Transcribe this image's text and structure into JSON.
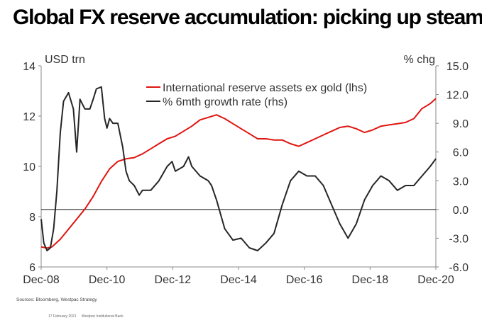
{
  "title": "Global FX reserve accumulation: picking up steam",
  "source": "Sources: Bloomberg, Westpac Strategy",
  "footer": {
    "date": "17 February 2021",
    "org": "Westpac Institutional Bank"
  },
  "chart_data": {
    "type": "line",
    "left_axis": {
      "label": "USD trn",
      "ylim": [
        6,
        14
      ],
      "ticks": [
        6,
        8,
        10,
        12,
        14
      ]
    },
    "right_axis": {
      "label": "% chg",
      "ylim": [
        -6,
        15
      ],
      "ticks": [
        "-6.0",
        "-3.0",
        "0.0",
        "3.0",
        "6.0",
        "9.0",
        "12.0",
        "15.0"
      ]
    },
    "x_range": [
      2008.92,
      2020.92
    ],
    "x_ticks": [
      "Dec-08",
      "Dec-10",
      "Dec-12",
      "Dec-14",
      "Dec-16",
      "Dec-18",
      "Dec-20"
    ],
    "x_tick_positions": [
      2008.92,
      2010.92,
      2012.92,
      2014.92,
      2016.92,
      2018.92,
      2020.92
    ],
    "zero_line_rhs": 0,
    "series": [
      {
        "name": "International reserve assets ex gold (lhs)",
        "color": "#e0140f",
        "axis": "left",
        "x": [
          2008.92,
          2009.1,
          2009.25,
          2009.5,
          2009.75,
          2010.0,
          2010.25,
          2010.5,
          2010.75,
          2011.0,
          2011.25,
          2011.5,
          2011.75,
          2012.0,
          2012.25,
          2012.5,
          2012.75,
          2013.0,
          2013.25,
          2013.5,
          2013.75,
          2014.0,
          2014.25,
          2014.5,
          2014.75,
          2015.0,
          2015.25,
          2015.5,
          2015.75,
          2016.0,
          2016.25,
          2016.5,
          2016.75,
          2017.0,
          2017.25,
          2017.5,
          2017.75,
          2018.0,
          2018.25,
          2018.5,
          2018.75,
          2019.0,
          2019.25,
          2019.5,
          2019.75,
          2020.0,
          2020.25,
          2020.5,
          2020.75,
          2020.92
        ],
        "values": [
          6.8,
          6.75,
          6.8,
          7.1,
          7.5,
          7.9,
          8.3,
          8.8,
          9.4,
          9.9,
          10.2,
          10.3,
          10.35,
          10.5,
          10.7,
          10.9,
          11.1,
          11.2,
          11.4,
          11.6,
          11.85,
          11.95,
          12.05,
          11.9,
          11.7,
          11.5,
          11.3,
          11.1,
          11.1,
          11.05,
          11.05,
          10.9,
          10.8,
          10.95,
          11.1,
          11.25,
          11.4,
          11.55,
          11.6,
          11.5,
          11.35,
          11.45,
          11.6,
          11.65,
          11.7,
          11.75,
          11.9,
          12.3,
          12.5,
          12.7
        ]
      },
      {
        "name": "% 6mth growth rate (rhs)",
        "color": "#262626",
        "axis": "right",
        "x": [
          2008.92,
          2009.0,
          2009.1,
          2009.2,
          2009.3,
          2009.4,
          2009.5,
          2009.6,
          2009.75,
          2009.9,
          2010.0,
          2010.1,
          2010.25,
          2010.4,
          2010.5,
          2010.6,
          2010.75,
          2010.85,
          2010.92,
          2011.0,
          2011.1,
          2011.25,
          2011.4,
          2011.5,
          2011.6,
          2011.75,
          2011.9,
          2012.0,
          2012.25,
          2012.5,
          2012.75,
          2012.9,
          2013.0,
          2013.25,
          2013.4,
          2013.5,
          2013.75,
          2014.0,
          2014.1,
          2014.25,
          2014.5,
          2014.75,
          2015.0,
          2015.25,
          2015.5,
          2015.75,
          2016.0,
          2016.25,
          2016.5,
          2016.75,
          2017.0,
          2017.25,
          2017.5,
          2017.75,
          2018.0,
          2018.25,
          2018.5,
          2018.75,
          2019.0,
          2019.25,
          2019.5,
          2019.75,
          2020.0,
          2020.25,
          2020.5,
          2020.75,
          2020.92
        ],
        "values": [
          -1.0,
          -3.5,
          -4.3,
          -4.0,
          -2.0,
          2.0,
          8.0,
          11.3,
          12.2,
          10.5,
          6.0,
          11.5,
          10.5,
          10.5,
          11.5,
          12.6,
          12.8,
          9.5,
          8.5,
          9.5,
          9.0,
          9.0,
          6.5,
          4.0,
          3.0,
          2.5,
          1.5,
          2.0,
          2.0,
          3.0,
          4.5,
          5.0,
          4.0,
          4.5,
          5.5,
          4.5,
          3.5,
          3.0,
          2.5,
          1.0,
          -2.0,
          -3.2,
          -3.0,
          -4.0,
          -4.3,
          -3.5,
          -2.5,
          0.5,
          3.0,
          4.0,
          3.5,
          3.5,
          2.5,
          0.5,
          -1.5,
          -3.0,
          -1.5,
          1.0,
          2.5,
          3.5,
          3.0,
          2.0,
          2.5,
          2.5,
          3.5,
          4.5,
          5.3
        ]
      }
    ]
  }
}
